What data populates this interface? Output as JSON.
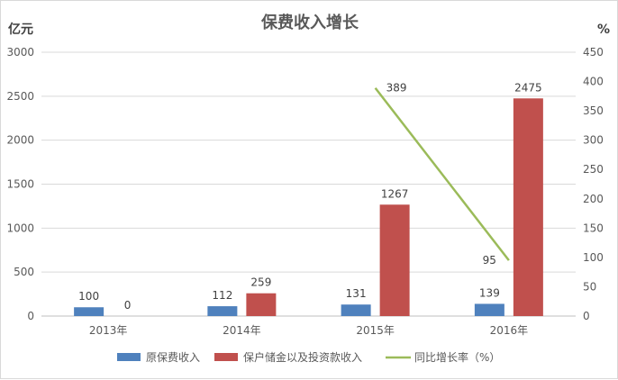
{
  "chart_data": {
    "type": "bar",
    "title": "保费收入增长",
    "categories": [
      "2013年",
      "2014年",
      "2015年",
      "2016年"
    ],
    "y_unit_left": "亿元",
    "y_unit_right": "%",
    "ylim_left": [
      0,
      3000
    ],
    "yticks_left": [
      "0",
      "500",
      "1000",
      "1500",
      "2000",
      "2500",
      "3000"
    ],
    "ylim_right": [
      0,
      450
    ],
    "yticks_right": [
      "0",
      "50",
      "100",
      "150",
      "200",
      "250",
      "300",
      "350",
      "400",
      "450"
    ],
    "grid": true,
    "legend_position": "bottom",
    "series": [
      {
        "name": "原保费收入",
        "type": "bar",
        "axis": "left",
        "color": "#4f81bd",
        "values": [
          100,
          112,
          131,
          139
        ],
        "labels": [
          "100",
          "112",
          "131",
          "139"
        ]
      },
      {
        "name": "保户储金以及投资款收入",
        "type": "bar",
        "axis": "left",
        "color": "#c0504d",
        "values": [
          0,
          259,
          1267,
          2475
        ],
        "labels": [
          "0",
          "259",
          "1267",
          "2475"
        ]
      },
      {
        "name": "同比增长率（%）",
        "type": "line",
        "axis": "right",
        "color": "#9bbb59",
        "values": [
          null,
          null,
          389,
          95
        ],
        "labels": [
          "",
          "",
          "389",
          "95"
        ]
      }
    ]
  }
}
